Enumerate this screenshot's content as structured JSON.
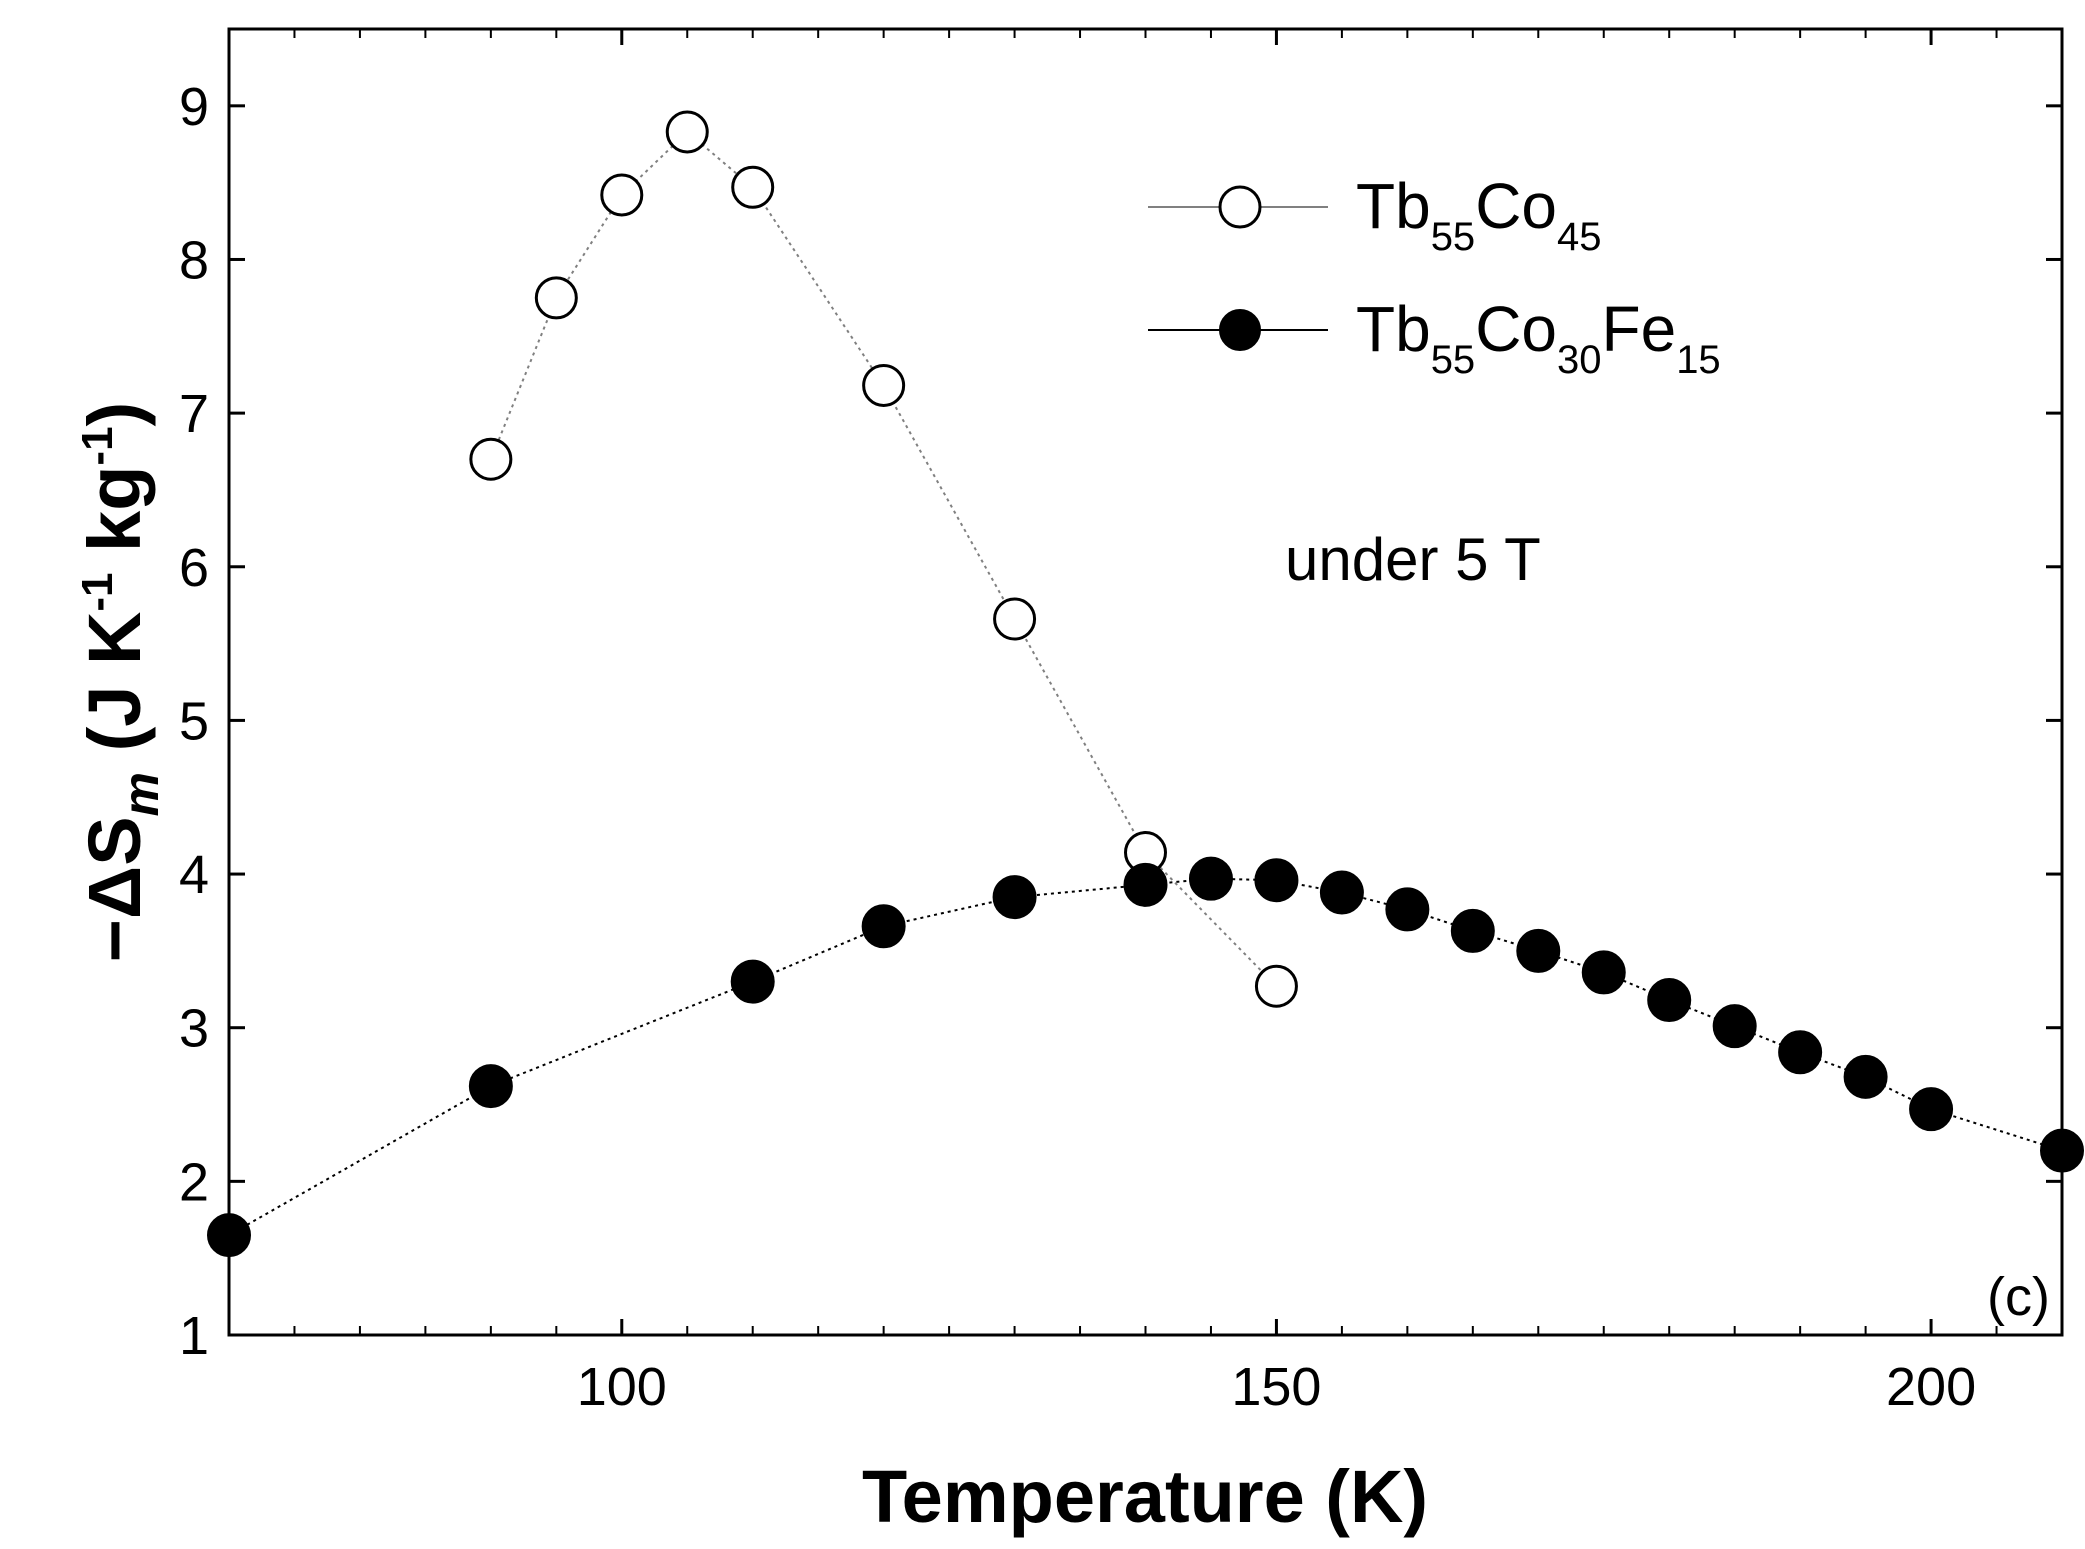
{
  "chart_data": {
    "type": "line",
    "title": "",
    "xlabel": "Temperature (K)",
    "ylabel": {
      "prefix": "−ΔS",
      "subscript": "m",
      "units_open": " (J K",
      "exp1": "-1",
      "units_mid": " kg",
      "exp2": "-1",
      "units_close": ")"
    },
    "xlim": [
      70,
      210
    ],
    "ylim": [
      1,
      9.5
    ],
    "x_major_ticks": [
      100,
      150,
      200
    ],
    "x_minor_ticks": [
      75,
      80,
      85,
      90,
      95,
      105,
      110,
      115,
      120,
      125,
      130,
      135,
      140,
      145,
      155,
      160,
      165,
      170,
      175,
      180,
      185,
      190,
      195,
      205
    ],
    "y_major_ticks": [
      1,
      2,
      3,
      4,
      5,
      6,
      7,
      8,
      9
    ],
    "x_tick_labels": [
      "100",
      "150",
      "200"
    ],
    "y_tick_labels": [
      "1",
      "2",
      "3",
      "4",
      "5",
      "6",
      "7",
      "8",
      "9"
    ],
    "series": [
      {
        "name": "Tb55Co45",
        "legend": {
          "base1": "Tb",
          "sub1": "55",
          "base2": "Co",
          "sub2": "45"
        },
        "marker": "open-circle",
        "line_color": "#808080",
        "x": [
          90,
          95,
          100,
          105,
          110,
          120,
          130,
          140,
          150
        ],
        "y": [
          6.7,
          7.75,
          8.42,
          8.83,
          8.47,
          7.18,
          5.66,
          4.14,
          3.27
        ]
      },
      {
        "name": "Tb55Co30Fe15",
        "legend": {
          "base1": "Tb",
          "sub1": "55",
          "base2": "Co",
          "sub2": "30",
          "base3": "Fe",
          "sub3": "15"
        },
        "marker": "filled-circle",
        "line_color": "#000000",
        "x": [
          70,
          90,
          110,
          120,
          130,
          140,
          145,
          150,
          155,
          160,
          165,
          170,
          175,
          180,
          185,
          190,
          195,
          200,
          210
        ],
        "y": [
          1.65,
          2.62,
          3.3,
          3.66,
          3.85,
          3.93,
          3.97,
          3.96,
          3.88,
          3.77,
          3.63,
          3.5,
          3.36,
          3.18,
          3.01,
          2.84,
          2.68,
          2.47,
          2.2
        ]
      }
    ],
    "annotations": [
      "under 5 T",
      "(c)"
    ],
    "legend_position": "top-right",
    "grid": false
  }
}
